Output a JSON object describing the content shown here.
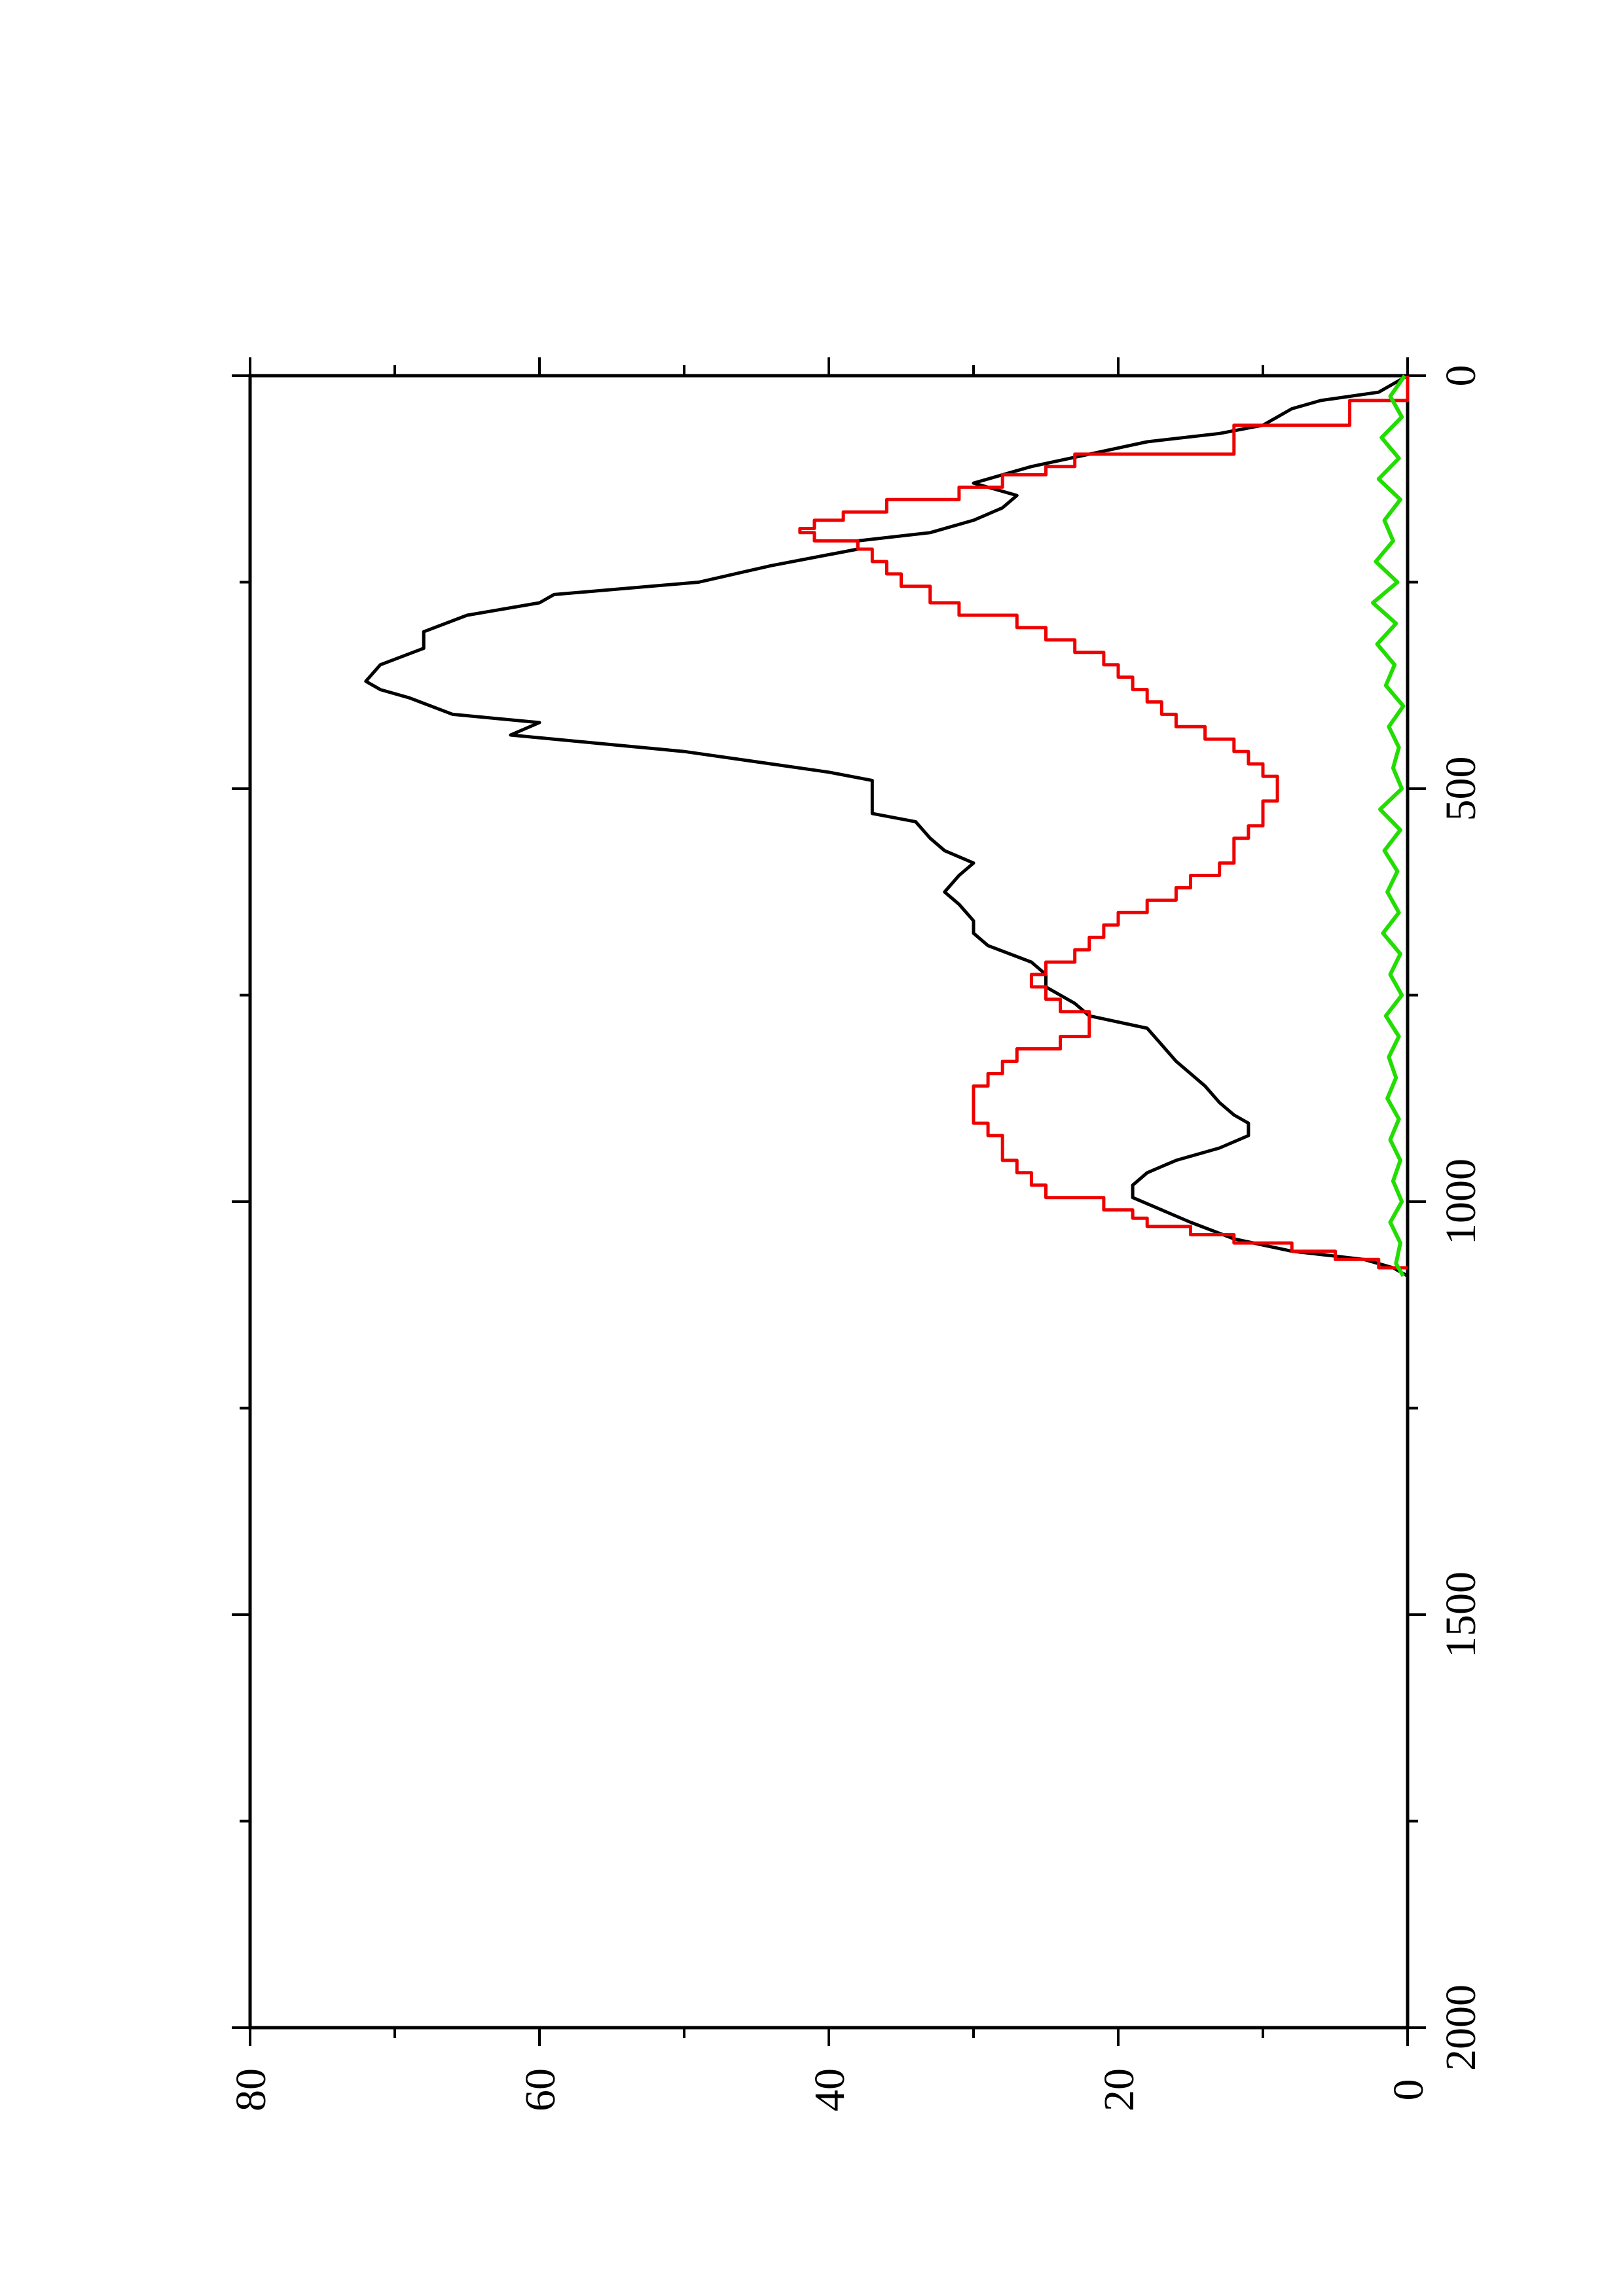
{
  "chart_data": {
    "type": "line",
    "orientation": "rotated-90-clockwise (x axis runs top-to-bottom, y axis runs right-to-left)",
    "title": "",
    "xlabel": "",
    "ylabel": "",
    "xlim": [
      0,
      2000
    ],
    "ylim": [
      0,
      80
    ],
    "x_ticks_major": [
      0,
      500,
      1000,
      1500,
      2000
    ],
    "x_tick_labels": [
      "0",
      "500",
      "1000",
      "1500",
      "2000"
    ],
    "x_ticks_minor": [
      250,
      750,
      1250,
      1750
    ],
    "y_ticks_major": [
      0,
      20,
      40,
      60,
      80
    ],
    "y_tick_labels": [
      "0",
      "20",
      "40",
      "60",
      "80"
    ],
    "y_ticks_minor": [
      10,
      30,
      50,
      70
    ],
    "grid": false,
    "legend": "none",
    "series": [
      {
        "color": "#000000",
        "style": "solid",
        "points": [
          [
            0,
            0
          ],
          [
            20,
            2
          ],
          [
            30,
            6
          ],
          [
            40,
            8
          ],
          [
            60,
            10
          ],
          [
            70,
            13
          ],
          [
            80,
            18
          ],
          [
            95,
            22
          ],
          [
            110,
            26
          ],
          [
            130,
            30
          ],
          [
            145,
            27
          ],
          [
            160,
            28
          ],
          [
            175,
            30
          ],
          [
            190,
            33
          ],
          [
            200,
            38
          ],
          [
            210,
            38
          ],
          [
            230,
            44
          ],
          [
            250,
            49
          ],
          [
            265,
            59
          ],
          [
            275,
            60
          ],
          [
            290,
            65
          ],
          [
            310,
            68
          ],
          [
            330,
            68
          ],
          [
            350,
            71
          ],
          [
            370,
            72
          ],
          [
            380,
            71
          ],
          [
            390,
            69
          ],
          [
            410,
            66
          ],
          [
            420,
            60
          ],
          [
            435,
            62
          ],
          [
            445,
            56
          ],
          [
            455,
            50
          ],
          [
            470,
            44
          ],
          [
            480,
            40
          ],
          [
            490,
            37
          ],
          [
            510,
            37
          ],
          [
            530,
            37
          ],
          [
            540,
            34
          ],
          [
            560,
            33
          ],
          [
            575,
            32
          ],
          [
            590,
            30
          ],
          [
            605,
            31
          ],
          [
            625,
            32
          ],
          [
            640,
            31
          ],
          [
            660,
            30
          ],
          [
            675,
            30
          ],
          [
            690,
            29
          ],
          [
            710,
            26
          ],
          [
            725,
            25
          ],
          [
            740,
            25
          ],
          [
            760,
            23
          ],
          [
            775,
            22
          ],
          [
            790,
            18
          ],
          [
            810,
            17
          ],
          [
            830,
            16
          ],
          [
            845,
            15
          ],
          [
            860,
            14
          ],
          [
            880,
            13
          ],
          [
            895,
            12
          ],
          [
            905,
            11
          ],
          [
            920,
            11
          ],
          [
            935,
            13
          ],
          [
            950,
            16
          ],
          [
            965,
            18
          ],
          [
            980,
            19
          ],
          [
            995,
            19
          ],
          [
            1010,
            17
          ],
          [
            1025,
            15
          ],
          [
            1045,
            12
          ],
          [
            1060,
            8
          ],
          [
            1070,
            3
          ],
          [
            1080,
            1
          ],
          [
            1090,
            0
          ]
        ]
      },
      {
        "color": "#ee0000",
        "style": "steps",
        "points": [
          [
            0,
            0
          ],
          [
            30,
            4
          ],
          [
            60,
            12
          ],
          [
            95,
            23
          ],
          [
            110,
            25
          ],
          [
            120,
            28
          ],
          [
            135,
            31
          ],
          [
            150,
            36
          ],
          [
            165,
            39
          ],
          [
            175,
            41
          ],
          [
            185,
            42
          ],
          [
            190,
            41
          ],
          [
            200,
            38
          ],
          [
            210,
            37
          ],
          [
            225,
            36
          ],
          [
            240,
            35
          ],
          [
            255,
            33
          ],
          [
            275,
            31
          ],
          [
            290,
            27
          ],
          [
            305,
            25
          ],
          [
            320,
            23
          ],
          [
            335,
            21
          ],
          [
            350,
            20
          ],
          [
            365,
            19
          ],
          [
            380,
            18
          ],
          [
            395,
            17
          ],
          [
            410,
            16
          ],
          [
            425,
            14
          ],
          [
            440,
            12
          ],
          [
            455,
            11
          ],
          [
            470,
            10
          ],
          [
            485,
            9
          ],
          [
            500,
            9
          ],
          [
            515,
            10
          ],
          [
            530,
            10
          ],
          [
            545,
            11
          ],
          [
            560,
            12
          ],
          [
            575,
            12
          ],
          [
            590,
            13
          ],
          [
            605,
            15
          ],
          [
            620,
            16
          ],
          [
            635,
            18
          ],
          [
            650,
            20
          ],
          [
            665,
            21
          ],
          [
            680,
            22
          ],
          [
            695,
            23
          ],
          [
            710,
            25
          ],
          [
            725,
            26
          ],
          [
            740,
            25
          ],
          [
            755,
            24
          ],
          [
            770,
            22
          ],
          [
            785,
            22
          ],
          [
            800,
            24
          ],
          [
            815,
            27
          ],
          [
            830,
            28
          ],
          [
            845,
            29
          ],
          [
            860,
            30
          ],
          [
            875,
            30
          ],
          [
            890,
            30
          ],
          [
            905,
            29
          ],
          [
            920,
            28
          ],
          [
            935,
            28
          ],
          [
            950,
            27
          ],
          [
            965,
            26
          ],
          [
            980,
            25
          ],
          [
            995,
            21
          ],
          [
            1010,
            19
          ],
          [
            1020,
            18
          ],
          [
            1030,
            15
          ],
          [
            1040,
            12
          ],
          [
            1050,
            8
          ],
          [
            1060,
            5
          ],
          [
            1070,
            2
          ],
          [
            1080,
            0
          ]
        ]
      },
      {
        "color": "#22dd00",
        "style": "solid-noisy",
        "points": [
          [
            0,
            0.2
          ],
          [
            25,
            1.2
          ],
          [
            50,
            0.4
          ],
          [
            75,
            1.8
          ],
          [
            100,
            0.6
          ],
          [
            125,
            2.0
          ],
          [
            150,
            0.5
          ],
          [
            175,
            1.6
          ],
          [
            200,
            1.0
          ],
          [
            225,
            2.2
          ],
          [
            250,
            0.7
          ],
          [
            275,
            2.4
          ],
          [
            300,
            0.8
          ],
          [
            325,
            2.1
          ],
          [
            350,
            0.9
          ],
          [
            375,
            1.5
          ],
          [
            400,
            0.3
          ],
          [
            425,
            1.3
          ],
          [
            450,
            0.6
          ],
          [
            475,
            1.0
          ],
          [
            500,
            0.4
          ],
          [
            525,
            1.9
          ],
          [
            550,
            0.5
          ],
          [
            575,
            1.6
          ],
          [
            600,
            0.7
          ],
          [
            625,
            1.4
          ],
          [
            650,
            0.6
          ],
          [
            675,
            1.7
          ],
          [
            700,
            0.5
          ],
          [
            725,
            1.2
          ],
          [
            750,
            0.4
          ],
          [
            775,
            1.5
          ],
          [
            800,
            0.6
          ],
          [
            825,
            1.3
          ],
          [
            850,
            0.8
          ],
          [
            875,
            1.4
          ],
          [
            900,
            0.6
          ],
          [
            925,
            1.2
          ],
          [
            950,
            0.5
          ],
          [
            975,
            1.0
          ],
          [
            1000,
            0.4
          ],
          [
            1025,
            1.2
          ],
          [
            1050,
            0.5
          ],
          [
            1075,
            0.8
          ],
          [
            1090,
            0.3
          ]
        ]
      }
    ]
  }
}
